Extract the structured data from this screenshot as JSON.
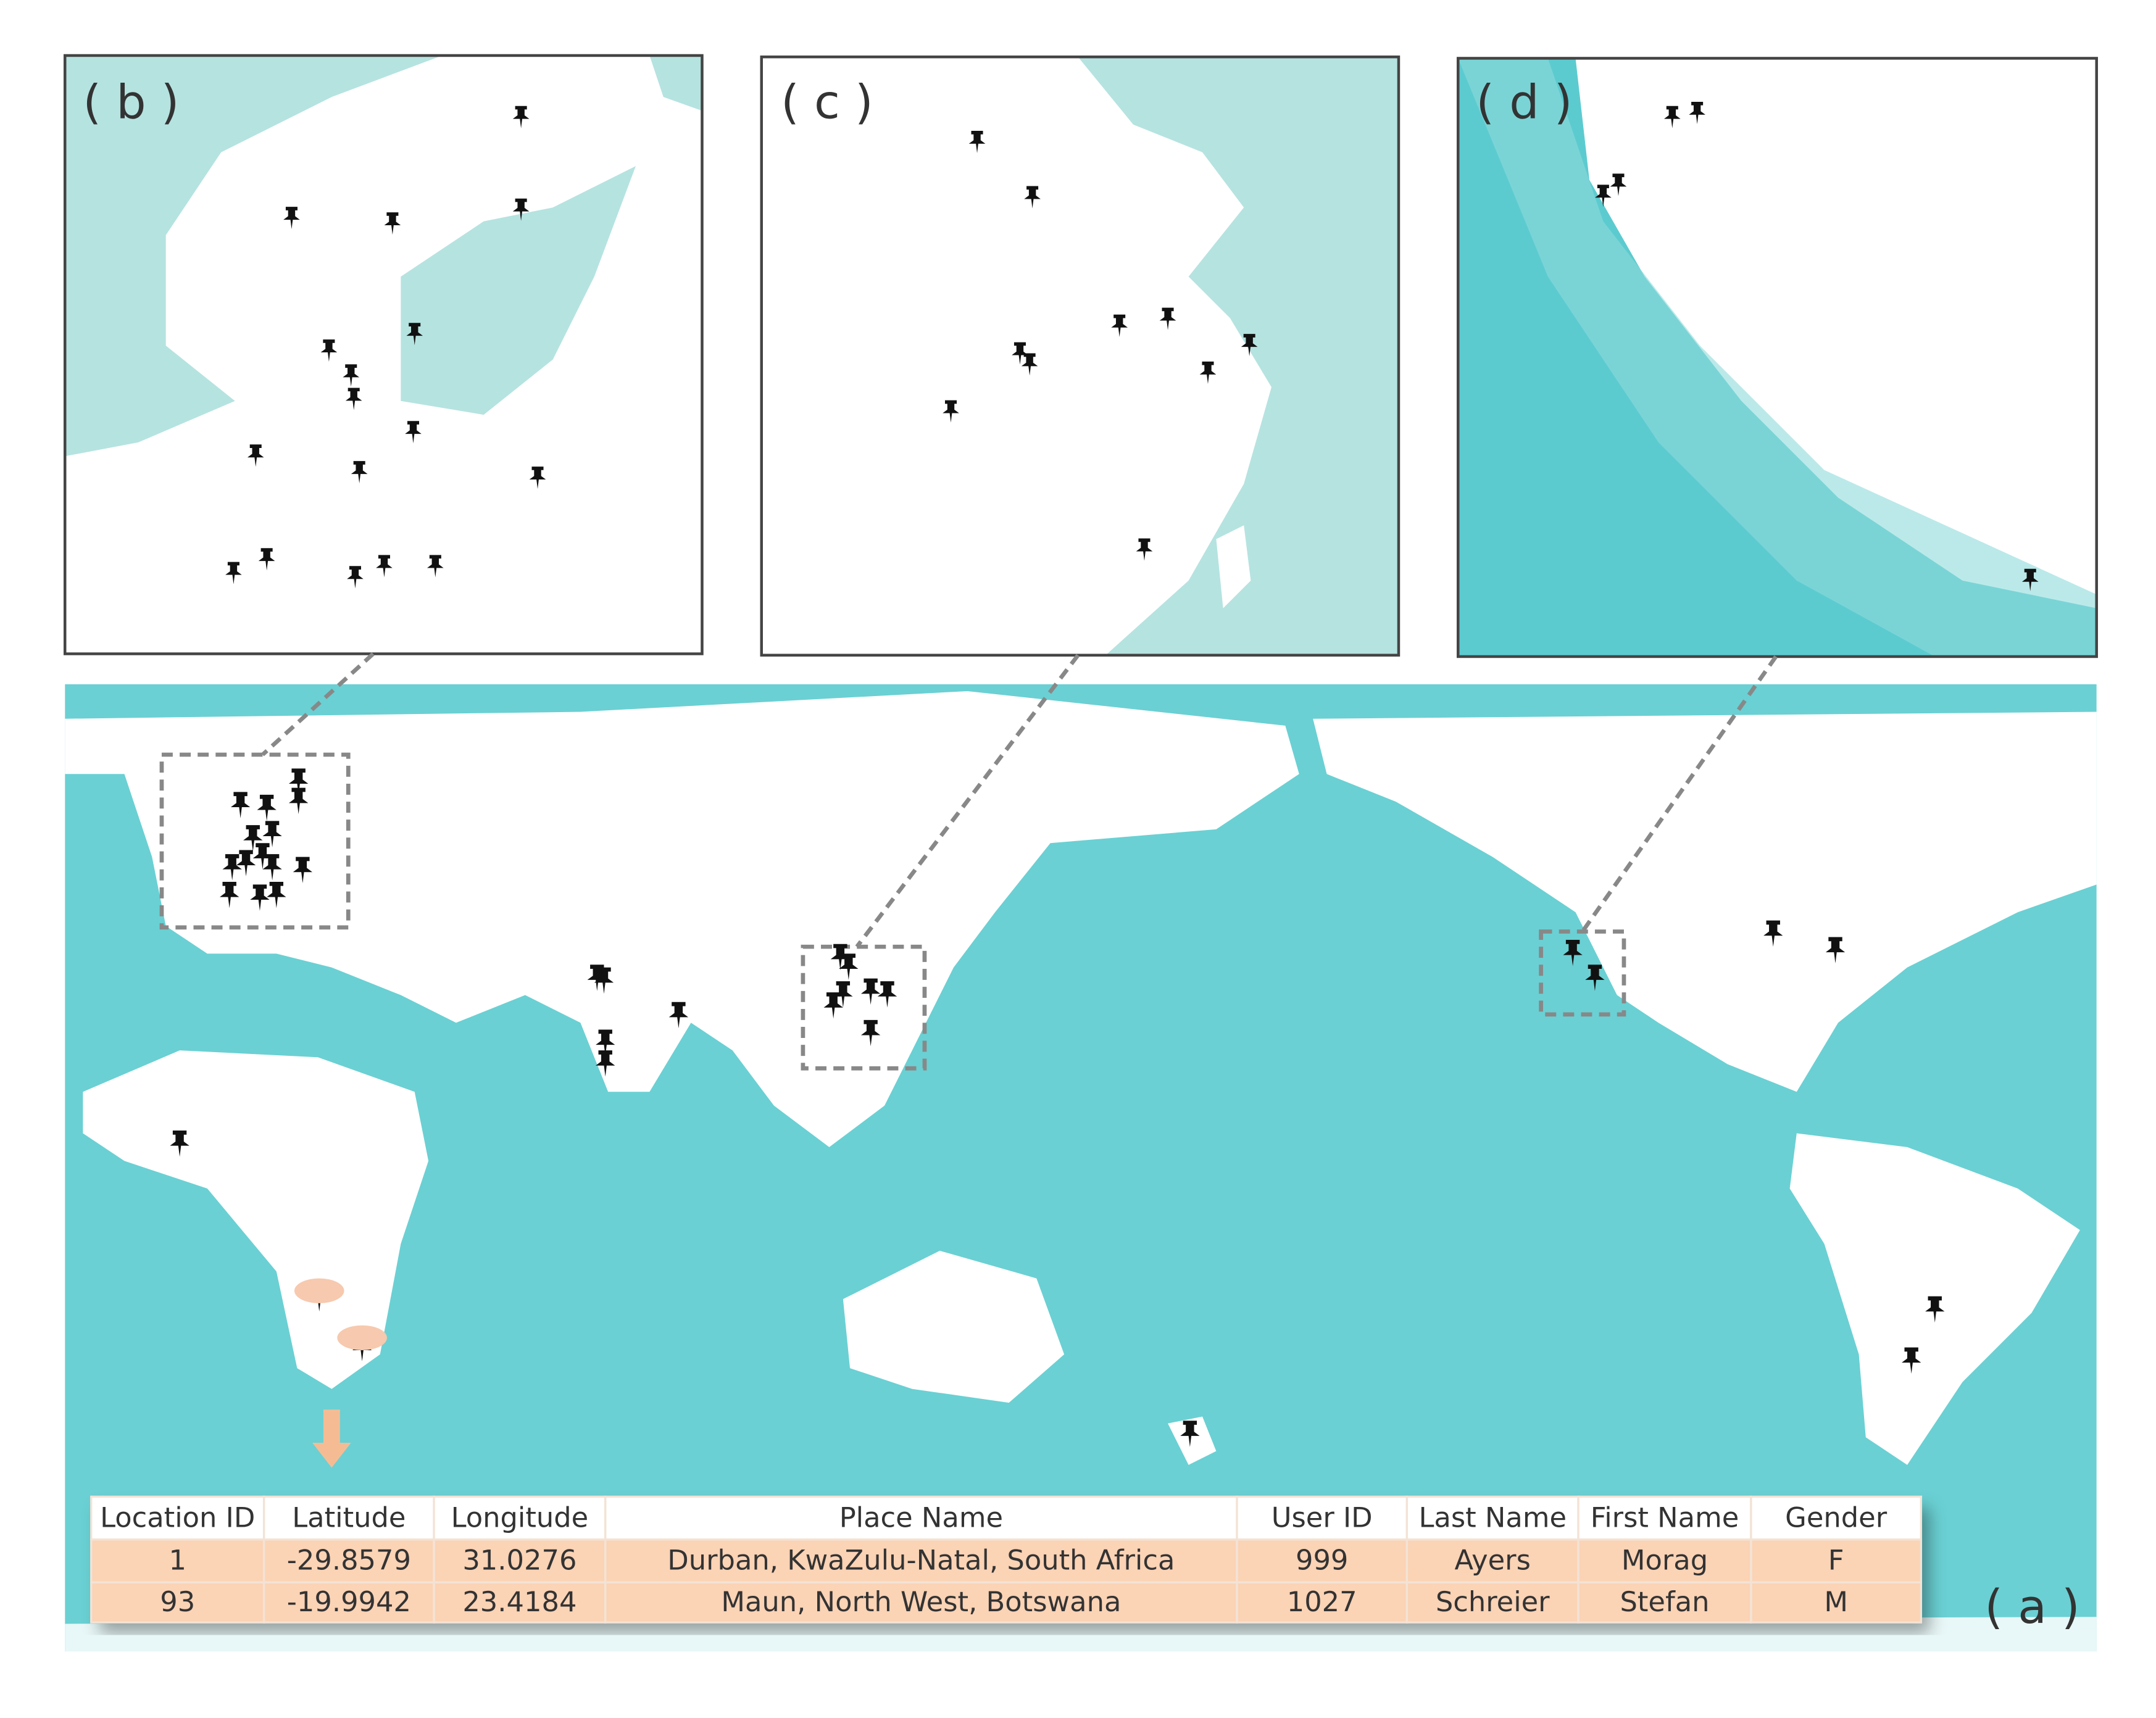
{
  "panel_labels": {
    "a": "( a )",
    "b": "( b )",
    "c": "( c )",
    "d": "( d )"
  },
  "table": {
    "headers": [
      "Location ID",
      "Latitude",
      "Longitude",
      "Place Name",
      "User ID",
      "Last Name",
      "First Name",
      "Gender"
    ],
    "rows": [
      [
        "1",
        "-29.8579",
        "31.0276",
        "Durban, KwaZulu-Natal, South Africa",
        "999",
        "Ayers",
        "Morag",
        "F"
      ],
      [
        "93",
        "-19.9942",
        "23.4184",
        "Maun, North West, Botswana",
        "1027",
        "Schreier",
        "Stefan",
        "M"
      ]
    ]
  }
}
